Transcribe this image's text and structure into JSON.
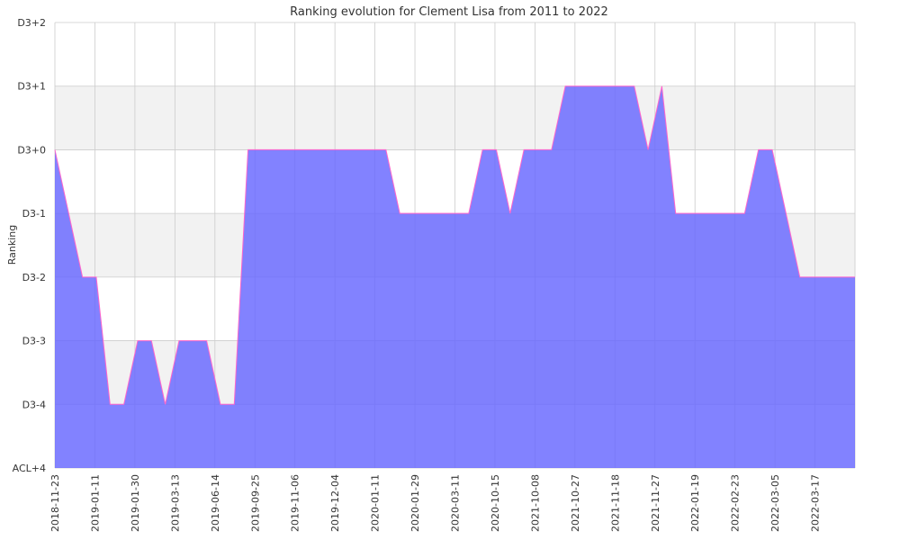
{
  "chart_data": {
    "type": "area",
    "title": "Ranking evolution for Clement Lisa from 2011 to 2022",
    "xlabel": "",
    "ylabel": "Ranking",
    "y_tick_labels": [
      "ACL+4",
      "D3-4",
      "D3-3",
      "D3-2",
      "D3-1",
      "D3+0",
      "D3+1",
      "D3+2"
    ],
    "x_tick_labels": [
      "2018-11-23",
      "2019-01-11",
      "2019-01-30",
      "2019-03-13",
      "2019-06-14",
      "2019-09-25",
      "2019-11-06",
      "2019-12-04",
      "2020-01-11",
      "2020-01-29",
      "2020-03-11",
      "2020-10-15",
      "2021-10-08",
      "2021-10-27",
      "2021-11-18",
      "2021-11-27",
      "2022-01-19",
      "2022-02-23",
      "2022-03-05",
      "2022-03-17"
    ],
    "ylim": [
      0,
      7
    ],
    "grid": true,
    "legend": "none",
    "colors": {
      "fill": "#6666ff",
      "line": "#ff66cc",
      "band": "#f2f2f2",
      "grid": "#cccccc",
      "text": "#333333"
    },
    "series": [
      {
        "x": [
          0,
          1,
          2,
          3,
          4,
          5,
          6,
          7,
          8,
          9,
          10,
          11,
          12,
          13,
          14,
          15,
          16,
          17,
          18,
          19,
          20,
          21,
          22,
          23,
          24,
          25,
          26,
          27,
          28,
          29,
          30,
          31,
          32,
          33,
          34,
          35,
          36,
          37,
          38,
          39,
          40,
          41,
          42,
          43,
          44,
          45,
          46,
          47,
          48,
          49,
          50,
          51,
          52,
          53,
          54,
          55,
          56,
          57,
          58
        ],
        "values": [
          5,
          4,
          3,
          3,
          1,
          1,
          2,
          2,
          1,
          2,
          2,
          2,
          1,
          1,
          5,
          5,
          5,
          5,
          5,
          5,
          5,
          5,
          5,
          5,
          5,
          4,
          4,
          4,
          4,
          4,
          4,
          5,
          5,
          4,
          5,
          5,
          5,
          6,
          6,
          6,
          6,
          6,
          6,
          5,
          6,
          4,
          4,
          4,
          4,
          4,
          4,
          5,
          5,
          4,
          3,
          3,
          3,
          3,
          3
        ]
      }
    ]
  }
}
